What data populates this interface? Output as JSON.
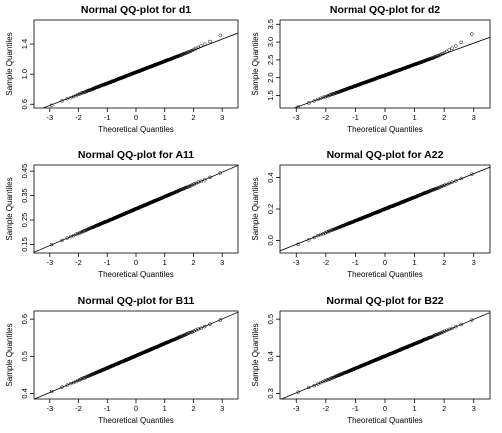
{
  "chart_data": [
    {
      "type": "scatter",
      "title": "Normal QQ-plot for d1",
      "xlabel": "Theoretical Quantiles",
      "ylabel": "Sample Quantiles",
      "xticks": [
        -3,
        -2,
        -1,
        0,
        1,
        2,
        3
      ],
      "yticks": [
        0.6,
        1.0,
        1.4
      ],
      "xlim": [
        -3.55,
        3.55
      ],
      "ylim": [
        0.55,
        1.72
      ],
      "line": {
        "intercept": 1.025,
        "slope": 0.147
      },
      "tail": {
        "lo": -0.02,
        "hi": 0.22
      }
    },
    {
      "type": "scatter",
      "title": "Normal QQ-plot for d2",
      "xlabel": "Theoretical Quantiles",
      "ylabel": "Sample Quantiles",
      "xticks": [
        -3,
        -2,
        -1,
        0,
        1,
        2,
        3
      ],
      "yticks": [
        1.5,
        2.0,
        2.5,
        3.0,
        3.5
      ],
      "xlim": [
        -3.55,
        3.55
      ],
      "ylim": [
        1.15,
        3.62
      ],
      "line": {
        "intercept": 2.07,
        "slope": 0.3
      },
      "tail": {
        "lo": 0.0,
        "hi": 0.5
      }
    },
    {
      "type": "scatter",
      "title": "Normal QQ-plot for A11",
      "xlabel": "Theoretical Quantiles",
      "ylabel": "Sample Quantiles",
      "xticks": [
        -3,
        -2,
        -1,
        0,
        1,
        2,
        3
      ],
      "yticks": [
        0.15,
        0.25,
        0.35,
        0.45
      ],
      "xlim": [
        -3.55,
        3.55
      ],
      "ylim": [
        0.115,
        0.475
      ],
      "line": {
        "intercept": 0.2955,
        "slope": 0.05
      },
      "tail": {
        "lo": 0.0,
        "hi": 0.0
      }
    },
    {
      "type": "scatter",
      "title": "Normal QQ-plot for A22",
      "xlabel": "Theoretical Quantiles",
      "ylabel": "Sample Quantiles",
      "xticks": [
        -3,
        -2,
        -1,
        0,
        1,
        2,
        3
      ],
      "yticks": [
        0.0,
        0.2,
        0.4
      ],
      "xlim": [
        -3.55,
        3.55
      ],
      "ylim": [
        -0.08,
        0.48
      ],
      "line": {
        "intercept": 0.2,
        "slope": 0.075
      },
      "tail": {
        "lo": -0.03,
        "hi": 0.0
      }
    },
    {
      "type": "scatter",
      "title": "Normal QQ-plot for B11",
      "xlabel": "Theoretical Quantiles",
      "ylabel": "Sample Quantiles",
      "xticks": [
        -3,
        -2,
        -1,
        0,
        1,
        2,
        3
      ],
      "yticks": [
        0.4,
        0.5,
        0.6
      ],
      "xlim": [
        -3.55,
        3.55
      ],
      "ylim": [
        0.385,
        0.622
      ],
      "line": {
        "intercept": 0.5015,
        "slope": 0.033
      },
      "tail": {
        "lo": 0.0,
        "hi": 0.0
      }
    },
    {
      "type": "scatter",
      "title": "Normal QQ-plot for B22",
      "xlabel": "Theoretical Quantiles",
      "ylabel": "Sample Quantiles",
      "xticks": [
        -3,
        -2,
        -1,
        0,
        1,
        2,
        3
      ],
      "yticks": [
        0.3,
        0.4,
        0.5
      ],
      "xlim": [
        -3.55,
        3.55
      ],
      "ylim": [
        0.285,
        0.522
      ],
      "line": {
        "intercept": 0.4005,
        "slope": 0.033
      },
      "tail": {
        "lo": 0.0,
        "hi": 0.0
      }
    }
  ]
}
